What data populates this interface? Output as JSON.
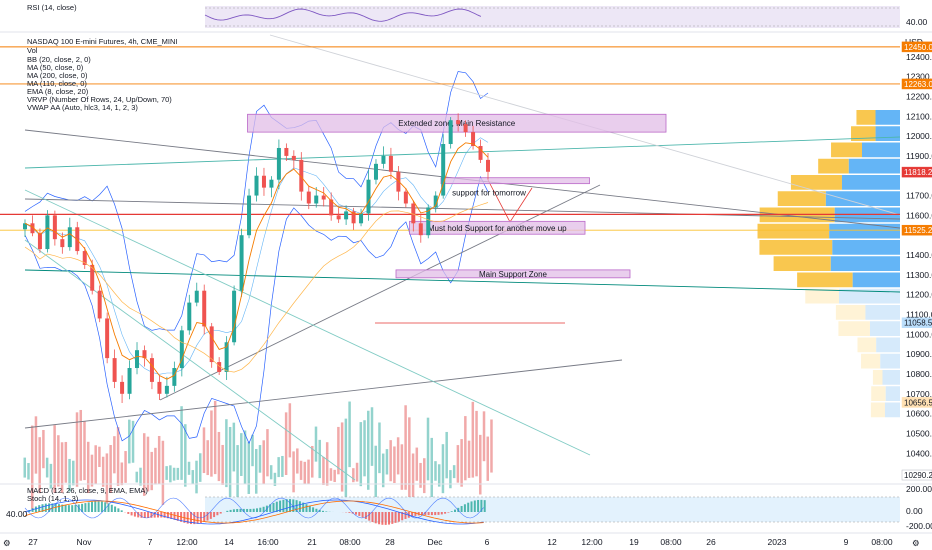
{
  "rsi": {
    "label": "RSI (14, close)",
    "ticks": [
      "40.00"
    ]
  },
  "main": {
    "title": "NASDAQ 100 E-mini Futures, 4h, CME_MINI",
    "indicators": [
      "Vol",
      "BB (20, close, 2, 0)",
      "MA (50, close, 0)",
      "MA (200, close, 0)",
      "MA (110, close, 0)",
      "EMA (8, close, 20)",
      "VRVP (Number Of Rows, 24, Up/Down, 70)",
      "VWAP AA (Auto, hlc3, 14, 1, 2, 3)"
    ],
    "currency": "USD",
    "price_ticks": [
      "12400.00",
      "12300.00",
      "12200.00",
      "12100.00",
      "12000.00",
      "11900.00",
      "11700.00",
      "11600.00",
      "11400.00",
      "11300.00",
      "11200.00",
      "11100.00",
      "11000.00",
      "10900.00",
      "10800.00",
      "10700.00",
      "10600.00",
      "10500.00",
      "10400.00"
    ],
    "badges": [
      {
        "text": "12450.00",
        "value": 12450,
        "color": "#f57c00"
      },
      {
        "text": "12263.00",
        "value": 12263,
        "color": "#f57c00"
      },
      {
        "text": "11818.25",
        "value": 11818.25,
        "color": "#e53935"
      },
      {
        "text": "11525.25",
        "value": 11525.25,
        "color": "#f57c00"
      },
      {
        "text": "11058.50",
        "value": 11058.5,
        "color": "#bbdefb"
      },
      {
        "text": "10656.50",
        "value": 10656.5,
        "color": "#ffe0b2"
      },
      {
        "text": "10290.25",
        "value": 10290.25,
        "color": "#ffffff"
      }
    ],
    "zones": [
      {
        "text": "Extended zone, Main Resistance",
        "top": 12110,
        "bottom": 12020,
        "x0": 0.275,
        "x1": 0.74
      },
      {
        "text": "support for tomorrow",
        "top": 11790,
        "bottom": 11760,
        "x0": 0.49,
        "x1": 0.655
      },
      {
        "text": "Must hold Support for another move up",
        "top": 11570,
        "bottom": 11505,
        "x0": 0.455,
        "x1": 0.65
      },
      {
        "text": "Main Support Zone",
        "top": 11325,
        "bottom": 11285,
        "x0": 0.44,
        "x1": 0.7
      }
    ]
  },
  "macd": {
    "label": "MACD (12, 26, close, 9, EMA, EMA)",
    "ticks": [
      "200.00",
      "0.00",
      "-200.00"
    ]
  },
  "stoch": {
    "label": "Stoch (14, 1, 3)",
    "ticks": [
      "40.00"
    ]
  },
  "time_axis": [
    "27",
    "Nov",
    "7",
    "12:00",
    "14",
    "16:00",
    "21",
    "08:00",
    "28",
    "Dec",
    "6",
    "12",
    "12:00",
    "19",
    "08:00",
    "26",
    "2023",
    "9",
    "08:00"
  ],
  "colors": {
    "up": "#26a69a",
    "down": "#ef5350",
    "vol_up": "#80cbc4",
    "vol_down": "#ef9a9a",
    "orange": "#f57c00",
    "blue": "#2962ff",
    "teal": "#00897b",
    "zone": "#e1bee7",
    "red_line": "#e53935"
  },
  "chart_data": {
    "type": "candlestick",
    "title": "NASDAQ 100 E-mini Futures, 4h, CME_MINI",
    "ylim": [
      10250,
      12520
    ],
    "last_price": 11818.25,
    "horizontal_levels": [
      12450,
      12263,
      11605,
      11525.25
    ],
    "close": [
      11560,
      11510,
      11430,
      11600,
      11480,
      11440,
      11540,
      11420,
      11350,
      11220,
      11080,
      10880,
      10760,
      10700,
      10830,
      10920,
      10880,
      10760,
      10700,
      10740,
      10830,
      11020,
      11160,
      11220,
      11040,
      10860,
      10810,
      10960,
      11220,
      11500,
      11700,
      11800,
      11740,
      11780,
      11940,
      11900,
      11880,
      11720,
      11660,
      11700,
      11680,
      11600,
      11580,
      11620,
      11560,
      11610,
      11780,
      11860,
      11900,
      11820,
      11720,
      11660,
      11560,
      11500,
      11640,
      11700,
      11960,
      12080,
      12060,
      12020,
      11950,
      11880,
      11820
    ]
  }
}
